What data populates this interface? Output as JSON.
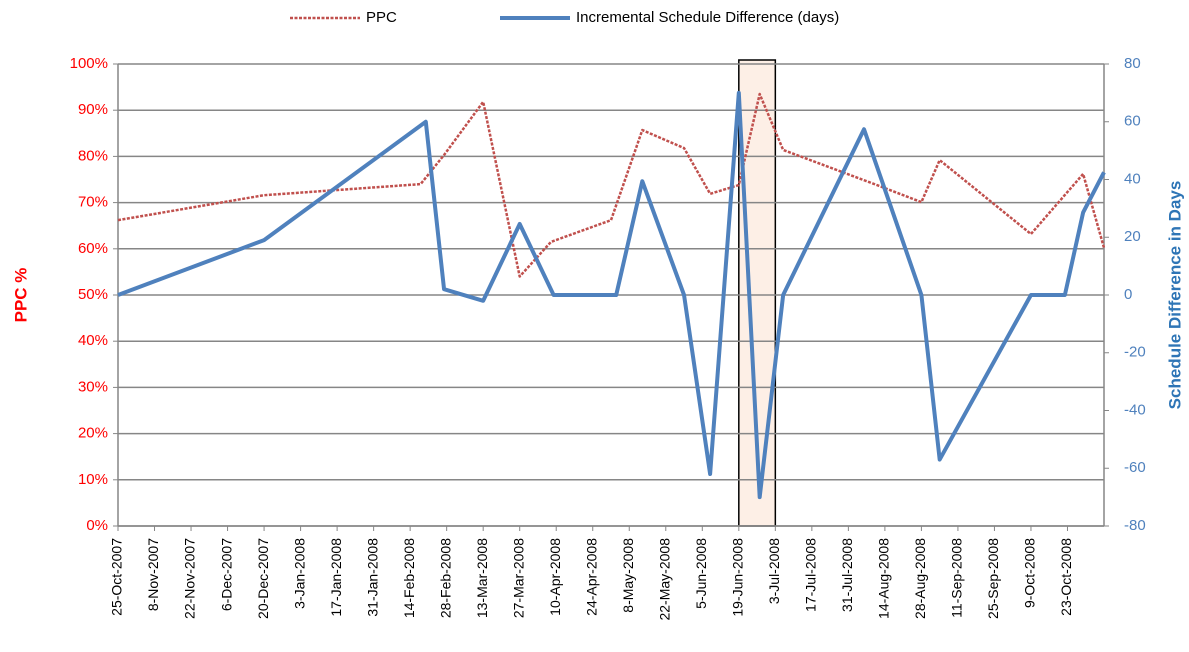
{
  "chart_data": {
    "type": "line",
    "xlim": [
      "2007-10-25",
      "2008-11-06"
    ],
    "xticks": [
      {
        "value": "2007-10-25",
        "label": "25-Oct-2007"
      },
      {
        "value": "2007-11-08",
        "label": "8-Nov-2007"
      },
      {
        "value": "2007-11-22",
        "label": "22-Nov-2007"
      },
      {
        "value": "2007-12-06",
        "label": "6-Dec-2007"
      },
      {
        "value": "2007-12-20",
        "label": "20-Dec-2007"
      },
      {
        "value": "2008-01-03",
        "label": "3-Jan-2008"
      },
      {
        "value": "2008-01-17",
        "label": "17-Jan-2008"
      },
      {
        "value": "2008-01-31",
        "label": "31-Jan-2008"
      },
      {
        "value": "2008-02-14",
        "label": "14-Feb-2008"
      },
      {
        "value": "2008-02-28",
        "label": "28-Feb-2008"
      },
      {
        "value": "2008-03-13",
        "label": "13-Mar-2008"
      },
      {
        "value": "2008-03-27",
        "label": "27-Mar-2008"
      },
      {
        "value": "2008-04-10",
        "label": "10-Apr-2008"
      },
      {
        "value": "2008-04-24",
        "label": "24-Apr-2008"
      },
      {
        "value": "2008-05-08",
        "label": "8-May-2008"
      },
      {
        "value": "2008-05-22",
        "label": "22-May-2008"
      },
      {
        "value": "2008-06-05",
        "label": "5-Jun-2008"
      },
      {
        "value": "2008-06-19",
        "label": "19-Jun-2008"
      },
      {
        "value": "2008-07-03",
        "label": "3-Jul-2008"
      },
      {
        "value": "2008-07-17",
        "label": "17-Jul-2008"
      },
      {
        "value": "2008-07-31",
        "label": "31-Jul-2008"
      },
      {
        "value": "2008-08-14",
        "label": "14-Aug-2008"
      },
      {
        "value": "2008-08-28",
        "label": "28-Aug-2008"
      },
      {
        "value": "2008-09-11",
        "label": "11-Sep-2008"
      },
      {
        "value": "2008-09-25",
        "label": "25-Sep-2008"
      },
      {
        "value": "2008-10-09",
        "label": "9-Oct-2008"
      },
      {
        "value": "2008-10-23",
        "label": "23-Oct-2008"
      }
    ],
    "ylabel": "PPC %",
    "y2label": "Schedule Difference in Days",
    "ylim": [
      0,
      100
    ],
    "yticks": [
      {
        "value": 0,
        "label": "0%"
      },
      {
        "value": 10,
        "label": "10%"
      },
      {
        "value": 20,
        "label": "20%"
      },
      {
        "value": 30,
        "label": "30%"
      },
      {
        "value": 40,
        "label": "40%"
      },
      {
        "value": 50,
        "label": "50%"
      },
      {
        "value": 60,
        "label": "60%"
      },
      {
        "value": 70,
        "label": "70%"
      },
      {
        "value": 80,
        "label": "80%"
      },
      {
        "value": 90,
        "label": "90%"
      },
      {
        "value": 100,
        "label": "100%"
      }
    ],
    "y2lim": [
      -80,
      80
    ],
    "y2ticks": [
      -80,
      -60,
      -40,
      -20,
      0,
      20,
      40,
      60,
      80
    ],
    "grid": true,
    "highlight": [
      "2008-06-19",
      "2008-07-03"
    ],
    "series": [
      {
        "name": "PPC",
        "color": "#c0504d",
        "dashed": true,
        "x": [
          "2007-10-25",
          "2007-12-20",
          "2008-02-18",
          "2008-02-27",
          "2008-03-13",
          "2008-03-27",
          "2008-04-08",
          "2008-05-01",
          "2008-05-13",
          "2008-05-29",
          "2008-06-08",
          "2008-06-19",
          "2008-06-27",
          "2008-07-06",
          "2008-08-10",
          "2008-08-28",
          "2008-09-04",
          "2008-10-09",
          "2008-10-23",
          "2008-10-29",
          "2008-11-06"
        ],
        "values": [
          66.2,
          71.6,
          74,
          80.3,
          91.8,
          54,
          61.5,
          66.2,
          85.7,
          81.8,
          71.9,
          73.8,
          93.5,
          81.4,
          74,
          70.1,
          79.2,
          63.2,
          72.3,
          76.2,
          60.2
        ]
      },
      {
        "name": "Incremental Schedule Difference (days)",
        "color": "#4f81bd",
        "axis": "y2",
        "x": [
          "2007-10-25",
          "2007-12-20",
          "2008-02-20",
          "2008-02-27",
          "2008-03-13",
          "2008-03-27",
          "2008-04-09",
          "2008-05-03",
          "2008-05-13",
          "2008-05-29",
          "2008-06-08",
          "2008-06-19",
          "2008-06-27",
          "2008-07-06",
          "2008-08-06",
          "2008-08-28",
          "2008-09-04",
          "2008-10-09",
          "2008-10-22",
          "2008-10-29",
          "2008-11-06"
        ],
        "values": [
          0,
          19,
          60,
          2,
          -2,
          24.6,
          0,
          0,
          39.4,
          0,
          -62,
          70,
          -70,
          0,
          57.4,
          0,
          -57,
          0,
          0,
          28.6,
          42.5
        ]
      }
    ]
  }
}
